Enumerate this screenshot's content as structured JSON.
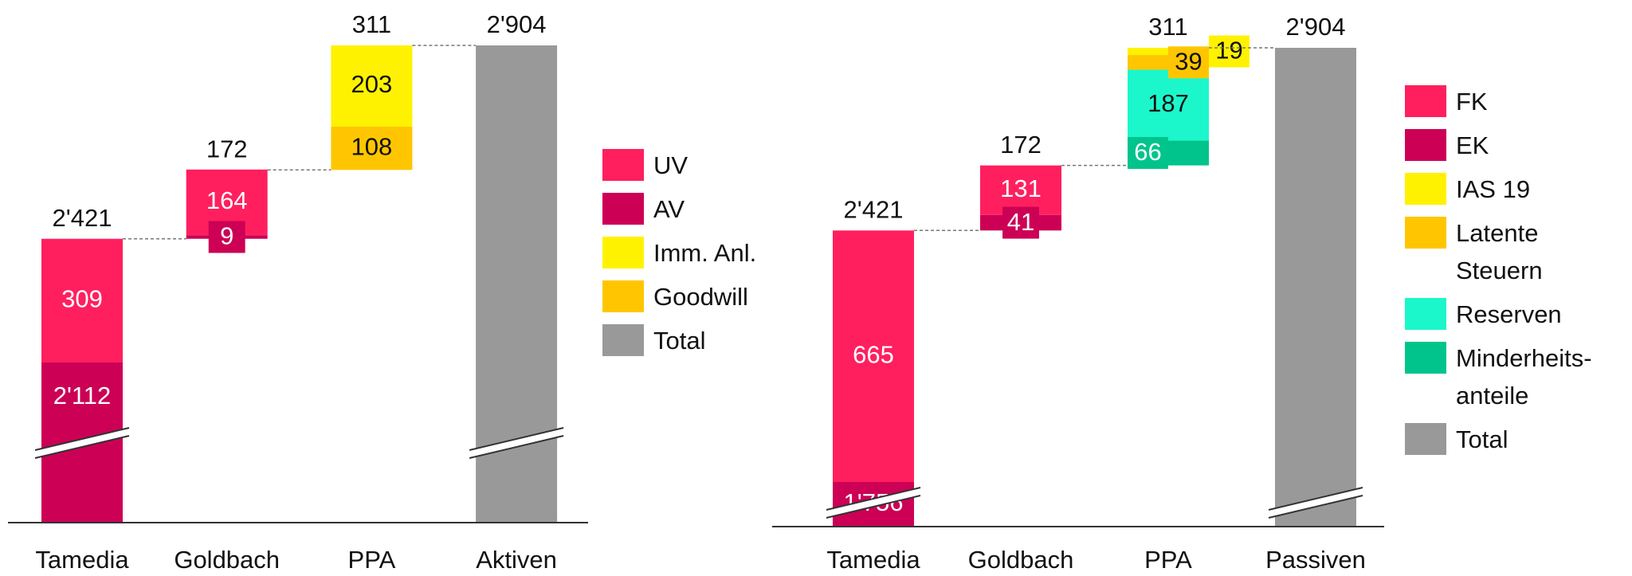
{
  "chart_data": [
    {
      "type": "waterfall",
      "categories": [
        "Tamedia",
        "Goldbach",
        "PPA",
        "Aktiven"
      ],
      "series": [
        {
          "name": "UV",
          "color": "#ff1f5f",
          "values": [
            309,
            164,
            null,
            null
          ]
        },
        {
          "name": "AV",
          "color": "#cc0055",
          "values": [
            2112,
            9,
            null,
            null
          ],
          "value_labels": [
            "2'112",
            "9",
            null,
            null
          ]
        },
        {
          "name": "Imm. Anl.",
          "color": "#fff200",
          "values": [
            null,
            null,
            203,
            null
          ]
        },
        {
          "name": "Goodwill",
          "color": "#ffc600",
          "values": [
            null,
            null,
            108,
            null
          ]
        },
        {
          "name": "Total",
          "color": "#999999",
          "values": [
            null,
            null,
            null,
            2904
          ]
        }
      ],
      "totals": [
        2421,
        172,
        311,
        2904
      ],
      "total_labels": [
        "2'421",
        "172",
        "311",
        "2'904"
      ]
    },
    {
      "type": "waterfall",
      "categories": [
        "Tamedia",
        "Goldbach",
        "PPA",
        "Passiven"
      ],
      "series": [
        {
          "name": "FK",
          "color": "#ff1f5f",
          "values": [
            665,
            131,
            null,
            null
          ]
        },
        {
          "name": "EK",
          "color": "#cc0055",
          "values": [
            1756,
            41,
            null,
            null
          ],
          "value_labels": [
            "1'756",
            "41",
            null,
            null
          ]
        },
        {
          "name": "IAS 19",
          "color": "#fff200",
          "values": [
            null,
            null,
            19,
            null
          ]
        },
        {
          "name": "Latente Steuern",
          "color": "#ffc600",
          "values": [
            null,
            null,
            39,
            null
          ]
        },
        {
          "name": "Reserven",
          "color": "#1bf7cb",
          "values": [
            null,
            null,
            187,
            null
          ]
        },
        {
          "name": "Minderheits-anteile",
          "color": "#00c48c",
          "values": [
            null,
            null,
            66,
            null
          ]
        },
        {
          "name": "Total",
          "color": "#999999",
          "values": [
            null,
            null,
            null,
            2904
          ]
        }
      ],
      "totals": [
        2421,
        172,
        311,
        2904
      ],
      "total_labels": [
        "2'421",
        "172",
        "311",
        "2'904"
      ]
    }
  ]
}
